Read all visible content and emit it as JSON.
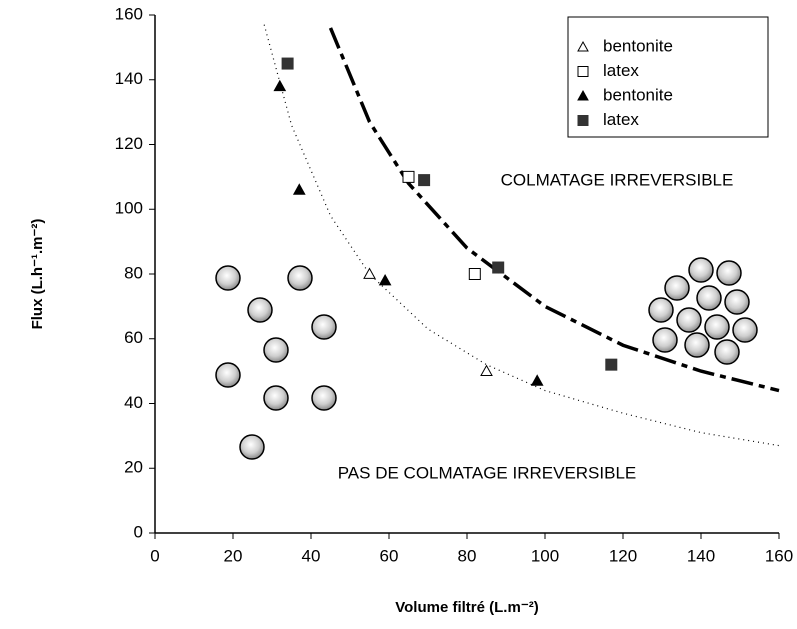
{
  "chart_data": {
    "type": "scatter",
    "xlabel": "Volume filtré (L.m⁻²)",
    "ylabel": "Flux (L.h⁻¹.m⁻²)",
    "xlim": [
      0,
      160
    ],
    "xticks": [
      0,
      20,
      40,
      60,
      80,
      100,
      120,
      140,
      160
    ],
    "ylim": [
      0,
      160
    ],
    "yticks": [
      0,
      20,
      40,
      60,
      80,
      100,
      120,
      140,
      160
    ],
    "legend": "upper right",
    "annotations": [
      "COLMATAGE IRREVERSIBLE",
      "PAS DE COLMATAGE IRREVERSIBLE"
    ],
    "series": [
      {
        "name": "bentonite",
        "marker": "triangle-open",
        "color": "#000000",
        "x": [
          55,
          85
        ],
        "values": [
          80,
          50
        ]
      },
      {
        "name": "latex",
        "marker": "square-open",
        "color": "#000000",
        "x": [
          65,
          82
        ],
        "values": [
          110,
          80
        ]
      },
      {
        "name": "bentonite",
        "marker": "triangle-filled",
        "color": "#000000",
        "x": [
          32,
          37,
          59,
          98
        ],
        "values": [
          138,
          106,
          78,
          47
        ]
      },
      {
        "name": "latex",
        "marker": "square-filled",
        "color": "#333333",
        "x": [
          34,
          69,
          88,
          117
        ],
        "values": [
          145,
          109,
          82,
          52
        ]
      }
    ],
    "lines": [
      {
        "dash": "dotted",
        "x": [
          28,
          35,
          45,
          55,
          70,
          85,
          100,
          120,
          140,
          160
        ],
        "values": [
          157,
          126,
          98,
          80,
          63,
          52,
          44,
          37,
          31,
          27
        ]
      },
      {
        "dash": "dashdot",
        "x": [
          45,
          55,
          65,
          80,
          100,
          120,
          140,
          160
        ],
        "values": [
          156,
          127,
          108,
          88,
          70,
          58,
          50,
          44
        ]
      }
    ]
  }
}
